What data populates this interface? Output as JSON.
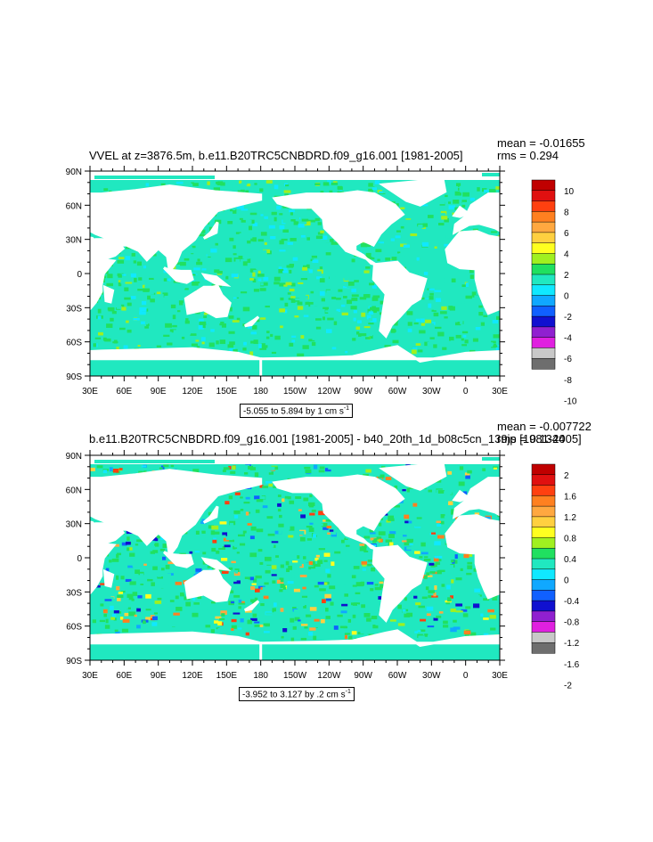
{
  "colors": {
    "palette": [
      "#6e6e6e",
      "#c8c8c8",
      "#e020e0",
      "#9020d0",
      "#1010d0",
      "#1060ff",
      "#10a8ff",
      "#10e8ff",
      "#20e8c0",
      "#20e060",
      "#a0f020",
      "#ffff20",
      "#ffd040",
      "#ffa840",
      "#ff8020",
      "#ff4010",
      "#e01010",
      "#c00000"
    ],
    "land_mask": "#ffffff",
    "ocean_dominant_top": "#20e8c0",
    "ocean_dominant_bottom": "#20e8c0"
  },
  "axes": {
    "x_ticks": [
      "30E",
      "60E",
      "90E",
      "120E",
      "150E",
      "180",
      "150W",
      "120W",
      "90W",
      "60W",
      "30W",
      "0",
      "30E"
    ],
    "y_ticks": [
      "90N",
      "60N",
      "30N",
      "0",
      "30S",
      "60S",
      "90S"
    ]
  },
  "panel_top": {
    "title": "VVEL at z=3876.5m, b.e11.B20TRC5CNBDRD.f09_g16.001 [1981-2005]",
    "mean": "mean = -0.01655",
    "rms": "rms = 0.294",
    "range_prefix": "-5.055 to 5.894 by 1 cm s",
    "range_exp": "-1",
    "colorbar_labels": [
      "10",
      "8",
      "6",
      "4",
      "2",
      "0",
      "-2",
      "-4",
      "-6",
      "-8",
      "-10"
    ]
  },
  "panel_bottom": {
    "title": "b.e11.B20TRC5CNBDRD.f09_g16.001 [1981-2005] - b40_20th_1d_b08c5cn_139jp [1981-2005]",
    "mean": "mean = -0.007722",
    "rms": "rms = 0.1344",
    "range_prefix": "-3.952 to 3.127 by .2 cm s",
    "range_exp": "-1",
    "colorbar_labels": [
      "2",
      "1.6",
      "1.2",
      "0.8",
      "0.4",
      "0",
      "-0.4",
      "-0.8",
      "-1.2",
      "-1.6",
      "-2"
    ]
  }
}
